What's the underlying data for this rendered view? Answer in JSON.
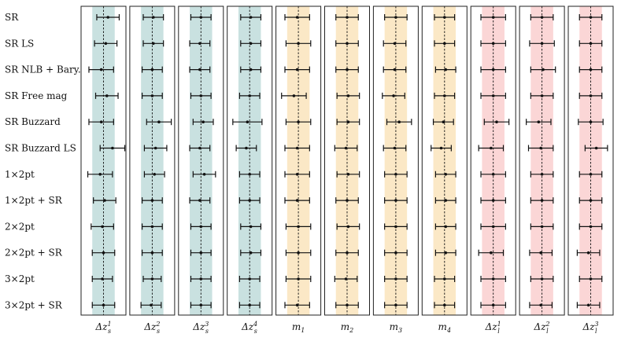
{
  "chart_data": {
    "type": "forest",
    "rows": [
      "SR",
      "SR LS",
      "SR NLB + Bary.",
      "SR Free mag",
      "SR Buzzard",
      "SR Buzzard LS",
      "1×2pt",
      "1×2pt + SR",
      "2×2pt",
      "2×2pt + SR",
      "3×2pt",
      "3×2pt + SR"
    ],
    "panels": [
      {
        "label": "Δz_s^1",
        "base": "Δz",
        "sub": "s",
        "sup": "1",
        "prior_color": "#c9e1e0",
        "x": [
          0.2,
          0.1,
          -0.1,
          0.15,
          -0.1,
          0.4,
          -0.15,
          0.05,
          -0.05,
          0.0,
          -0.05,
          0.0
        ],
        "err": [
          0.5,
          0.5,
          0.55,
          0.5,
          0.55,
          0.55,
          0.55,
          0.5,
          0.5,
          0.5,
          0.45,
          0.5
        ]
      },
      {
        "label": "Δz_s^2",
        "base": "Δz",
        "sub": "s",
        "sup": "2",
        "prior_color": "#c9e1e0",
        "x": [
          0.05,
          0.05,
          0.0,
          0.0,
          0.3,
          0.15,
          0.1,
          0.0,
          0.0,
          0.0,
          0.0,
          -0.05
        ],
        "err": [
          0.45,
          0.45,
          0.45,
          0.45,
          0.55,
          0.5,
          0.45,
          0.45,
          0.45,
          0.45,
          0.4,
          0.45
        ]
      },
      {
        "label": "Δz_s^3",
        "base": "Δz",
        "sub": "s",
        "sup": "3",
        "prior_color": "#c9e1e0",
        "x": [
          0.0,
          -0.05,
          -0.05,
          0.0,
          0.1,
          -0.05,
          0.15,
          -0.05,
          0.0,
          0.0,
          0.0,
          0.0
        ],
        "err": [
          0.45,
          0.45,
          0.45,
          0.45,
          0.45,
          0.45,
          0.5,
          0.45,
          0.45,
          0.45,
          0.45,
          0.45
        ]
      },
      {
        "label": "Δz_s^4",
        "base": "Δz",
        "sub": "s",
        "sup": "4",
        "prior_color": "#c9e1e0",
        "x": [
          0.05,
          0.05,
          0.05,
          0.0,
          -0.1,
          -0.15,
          0.0,
          0.0,
          0.05,
          0.05,
          0.0,
          0.0
        ],
        "err": [
          0.45,
          0.45,
          0.45,
          0.45,
          0.65,
          0.45,
          0.45,
          0.45,
          0.45,
          0.45,
          0.45,
          0.45
        ]
      },
      {
        "label": "m_1",
        "base": "m",
        "sub": "1",
        "sup": "",
        "prior_color": "#fbe8c6",
        "x": [
          -0.05,
          0.0,
          -0.05,
          -0.2,
          0.0,
          -0.05,
          -0.05,
          -0.05,
          0.0,
          0.0,
          0.0,
          -0.05
        ],
        "err": [
          0.55,
          0.55,
          0.55,
          0.55,
          0.55,
          0.55,
          0.55,
          0.55,
          0.55,
          0.55,
          0.55,
          0.55
        ]
      },
      {
        "label": "m_2",
        "base": "m",
        "sub": "2",
        "sup": "",
        "prior_color": "#fbe8c6",
        "x": [
          0.0,
          0.0,
          0.0,
          0.05,
          0.05,
          -0.05,
          0.05,
          0.0,
          0.05,
          0.0,
          -0.05,
          0.0
        ],
        "err": [
          0.5,
          0.5,
          0.5,
          0.5,
          0.5,
          0.5,
          0.5,
          0.5,
          0.5,
          0.5,
          0.5,
          0.5
        ]
      },
      {
        "label": "m_3",
        "base": "m",
        "sub": "3",
        "sup": "",
        "prior_color": "#fbe8c6",
        "x": [
          0.0,
          -0.05,
          -0.05,
          -0.1,
          0.15,
          -0.05,
          0.0,
          0.0,
          0.0,
          0.0,
          0.0,
          0.0
        ],
        "err": [
          0.5,
          0.5,
          0.5,
          0.5,
          0.55,
          0.5,
          0.5,
          0.5,
          0.5,
          0.5,
          0.5,
          0.5
        ]
      },
      {
        "label": "m_4",
        "base": "m",
        "sub": "4",
        "sup": "",
        "prior_color": "#fbe8c6",
        "x": [
          0.0,
          0.0,
          0.05,
          0.0,
          -0.05,
          -0.15,
          0.05,
          0.05,
          0.05,
          0.05,
          0.0,
          0.0
        ],
        "err": [
          0.45,
          0.45,
          0.45,
          0.45,
          0.45,
          0.45,
          0.45,
          0.45,
          0.45,
          0.45,
          0.45,
          0.45
        ]
      },
      {
        "label": "Δz_l^1",
        "base": "Δz",
        "sub": "l",
        "sup": "1",
        "prior_color": "#fbd6d6",
        "x": [
          0.0,
          0.0,
          0.0,
          0.0,
          0.15,
          -0.1,
          0.0,
          0.0,
          0.0,
          -0.1,
          0.0,
          0.0
        ],
        "err": [
          0.55,
          0.55,
          0.55,
          0.55,
          0.55,
          0.55,
          0.55,
          0.55,
          0.55,
          0.55,
          0.55,
          0.55
        ]
      },
      {
        "label": "Δz_l^2",
        "base": "Δz",
        "sub": "l",
        "sup": "2",
        "prior_color": "#fbd6d6",
        "x": [
          0.0,
          0.0,
          0.05,
          0.0,
          -0.15,
          -0.05,
          0.0,
          0.0,
          0.0,
          -0.05,
          0.0,
          -0.05
        ],
        "err": [
          0.5,
          0.55,
          0.55,
          0.5,
          0.55,
          0.55,
          0.5,
          0.5,
          0.5,
          0.5,
          0.5,
          0.5
        ]
      },
      {
        "label": "Δz_l^3",
        "base": "Δz",
        "sub": "l",
        "sup": "3",
        "prior_color": "#fbd6d6",
        "x": [
          0.0,
          0.0,
          0.0,
          0.0,
          0.0,
          0.25,
          0.0,
          0.0,
          0.0,
          -0.1,
          0.0,
          -0.1
        ],
        "err": [
          0.5,
          0.5,
          0.5,
          0.5,
          0.55,
          0.5,
          0.5,
          0.5,
          0.5,
          0.5,
          0.5,
          0.5
        ]
      }
    ],
    "xlim": [
      -1,
      1
    ],
    "prior_band": [
      -0.5,
      0.5
    ],
    "reference_line": 0,
    "grid": false
  }
}
